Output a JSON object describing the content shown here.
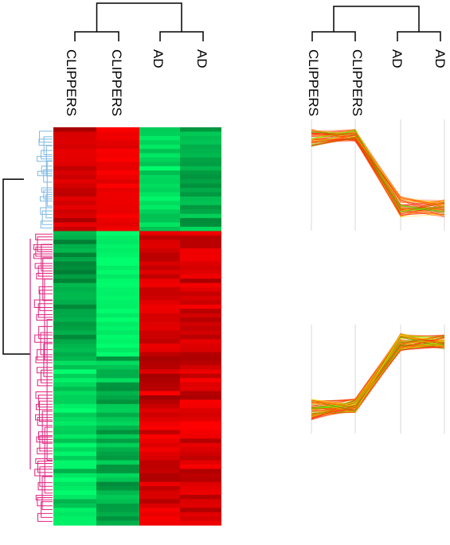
{
  "heatmap_panel": {
    "column_labels": [
      "CLIPPERS",
      "CLIPPERS",
      "AD",
      "AD"
    ]
  },
  "profile_panel": {
    "column_labels": [
      "CLIPPERS",
      "CLIPPERS",
      "AD",
      "AD"
    ]
  },
  "colors": {
    "high": "#ff0000",
    "low": "#00ff66",
    "cluster_1_dendrogram": "#7fb8e0",
    "cluster_2_dendrogram": "#e0237f",
    "profile_line_warm": "#ff3000",
    "profile_line_light": "#ffd200",
    "profile_line_green": "#40e000"
  }
}
